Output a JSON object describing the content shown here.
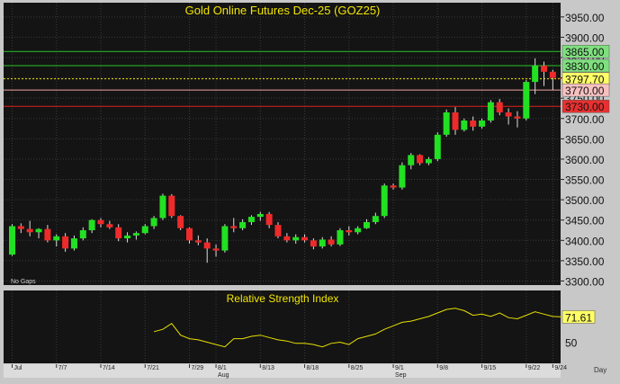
{
  "colors": {
    "background": "#141414",
    "frame": "#c8c8c8",
    "grid": "#3a3a3a",
    "up": "#22e022",
    "down": "#ee2a2a",
    "wick": "#dddddd",
    "title": "#f2e600",
    "rsi_line": "#e8e000",
    "green_line": "#27c427",
    "red_line": "#e02020",
    "salmon_line": "#f0a0a0"
  },
  "chart_data": [
    {
      "type": "candlestick",
      "title": "Gold Online Futures Dec-25  (GOZ25)",
      "note": "No Gaps",
      "ylim": [
        3290,
        3985
      ],
      "yticks": [
        3300,
        3350,
        3400,
        3450,
        3500,
        3550,
        3600,
        3650,
        3700,
        3750,
        3800,
        3850,
        3900,
        3950
      ],
      "ytick_labels": [
        "3300.00",
        "3350.00",
        "3400.00",
        "3450.00",
        "3500.00",
        "3550.00",
        "3600.00",
        "3650.00",
        "3700.00",
        "3750.00",
        "3800.00",
        "3850.00",
        "3900.00",
        "3950.00"
      ],
      "xticks": [
        {
          "i": 0,
          "label": "Jul"
        },
        {
          "i": 5,
          "label": "7/7"
        },
        {
          "i": 10,
          "label": "7/14"
        },
        {
          "i": 15,
          "label": "7/21"
        },
        {
          "i": 20,
          "label": "7/29"
        },
        {
          "i": 23,
          "label": "8/1"
        },
        {
          "i": 23,
          "label": "Aug",
          "sub": true
        },
        {
          "i": 28,
          "label": "8/13"
        },
        {
          "i": 33,
          "label": "8/18"
        },
        {
          "i": 38,
          "label": "8/25"
        },
        {
          "i": 43,
          "label": "9/1"
        },
        {
          "i": 43,
          "label": "Sep",
          "sub": true
        },
        {
          "i": 48,
          "label": "9/8"
        },
        {
          "i": 53,
          "label": "9/15"
        },
        {
          "i": 58,
          "label": "9/22"
        },
        {
          "i": 61,
          "label": "9/24"
        }
      ],
      "x_unit": "Day",
      "candles": [
        [
          3365,
          3440,
          3362,
          3435
        ],
        [
          3435,
          3442,
          3418,
          3428
        ],
        [
          3428,
          3448,
          3410,
          3420
        ],
        [
          3420,
          3430,
          3405,
          3428
        ],
        [
          3428,
          3438,
          3395,
          3400
        ],
        [
          3400,
          3415,
          3385,
          3410
        ],
        [
          3410,
          3418,
          3372,
          3380
        ],
        [
          3380,
          3412,
          3375,
          3405
        ],
        [
          3405,
          3432,
          3400,
          3425
        ],
        [
          3425,
          3452,
          3418,
          3450
        ],
        [
          3450,
          3455,
          3432,
          3440
        ],
        [
          3440,
          3448,
          3428,
          3432
        ],
        [
          3432,
          3440,
          3398,
          3405
        ],
        [
          3405,
          3420,
          3395,
          3412
        ],
        [
          3412,
          3422,
          3402,
          3418
        ],
        [
          3418,
          3440,
          3415,
          3435
        ],
        [
          3435,
          3460,
          3428,
          3455
        ],
        [
          3455,
          3515,
          3450,
          3510
        ],
        [
          3510,
          3514,
          3455,
          3460
        ],
        [
          3460,
          3462,
          3425,
          3430
        ],
        [
          3430,
          3432,
          3392,
          3400
        ],
        [
          3400,
          3412,
          3388,
          3395
        ],
        [
          3395,
          3405,
          3345,
          3380
        ],
        [
          3380,
          3390,
          3360,
          3375
        ],
        [
          3375,
          3440,
          3370,
          3435
        ],
        [
          3435,
          3455,
          3420,
          3430
        ],
        [
          3430,
          3452,
          3425,
          3445
        ],
        [
          3445,
          3462,
          3438,
          3458
        ],
        [
          3458,
          3470,
          3448,
          3465
        ],
        [
          3465,
          3470,
          3430,
          3438
        ],
        [
          3438,
          3445,
          3405,
          3410
        ],
        [
          3410,
          3418,
          3395,
          3400
        ],
        [
          3400,
          3415,
          3392,
          3408
        ],
        [
          3408,
          3415,
          3395,
          3400
        ],
        [
          3400,
          3405,
          3378,
          3385
        ],
        [
          3385,
          3408,
          3380,
          3402
        ],
        [
          3402,
          3410,
          3385,
          3390
        ],
        [
          3390,
          3430,
          3386,
          3425
        ],
        [
          3425,
          3435,
          3412,
          3420
        ],
        [
          3420,
          3435,
          3415,
          3430
        ],
        [
          3430,
          3452,
          3428,
          3445
        ],
        [
          3445,
          3468,
          3440,
          3460
        ],
        [
          3460,
          3540,
          3455,
          3535
        ],
        [
          3535,
          3540,
          3525,
          3530
        ],
        [
          3530,
          3592,
          3525,
          3585
        ],
        [
          3585,
          3615,
          3575,
          3610
        ],
        [
          3610,
          3612,
          3585,
          3590
        ],
        [
          3590,
          3605,
          3585,
          3600
        ],
        [
          3600,
          3666,
          3595,
          3660
        ],
        [
          3660,
          3722,
          3655,
          3715
        ],
        [
          3715,
          3728,
          3660,
          3672
        ],
        [
          3672,
          3700,
          3668,
          3695
        ],
        [
          3695,
          3705,
          3670,
          3680
        ],
        [
          3680,
          3700,
          3675,
          3695
        ],
        [
          3695,
          3745,
          3690,
          3740
        ],
        [
          3740,
          3748,
          3708,
          3715
        ],
        [
          3715,
          3725,
          3685,
          3705
        ],
        [
          3705,
          3718,
          3678,
          3700
        ],
        [
          3700,
          3795,
          3695,
          3790
        ],
        [
          3790,
          3848,
          3760,
          3830
        ],
        [
          3830,
          3840,
          3780,
          3815
        ],
        [
          3815,
          3820,
          3770,
          3800
        ],
        [
          3800,
          3808,
          3778,
          3797.7
        ]
      ],
      "horizontal_levels": [
        {
          "value": 3865,
          "label": "3865.00",
          "color": "#27c427",
          "label_bg": "#7ee07e"
        },
        {
          "value": 3830,
          "label": "3830.00",
          "color": "#27c427",
          "label_bg": "#7ee07e"
        },
        {
          "value": 3797.7,
          "label": "3797.70",
          "color": "#f2e600",
          "label_bg": "#ffff66",
          "dashed": true
        },
        {
          "value": 3770,
          "label": "3770.00",
          "color": "#f0a0a0",
          "label_bg": "#f7c0c0"
        },
        {
          "value": 3730,
          "label": "3730.00",
          "color": "#e02020",
          "label_bg": "#e83030"
        }
      ]
    },
    {
      "type": "line",
      "title": "Relative Strength Index",
      "ylim": [
        35,
        85
      ],
      "ytick_labels": [
        {
          "value": 50,
          "label": "50"
        }
      ],
      "last_label": "71.61",
      "start_index": 16,
      "values": [
        59,
        61,
        66,
        56,
        53,
        52,
        50,
        48,
        46,
        53,
        53,
        55,
        56,
        54,
        52,
        51,
        49,
        49,
        48,
        46,
        49,
        50,
        48,
        53,
        55,
        57,
        61,
        64,
        67,
        68,
        70,
        72,
        75,
        78,
        79,
        77,
        73,
        74,
        72,
        75,
        71,
        70,
        73,
        76,
        74,
        72,
        71.61
      ]
    }
  ]
}
